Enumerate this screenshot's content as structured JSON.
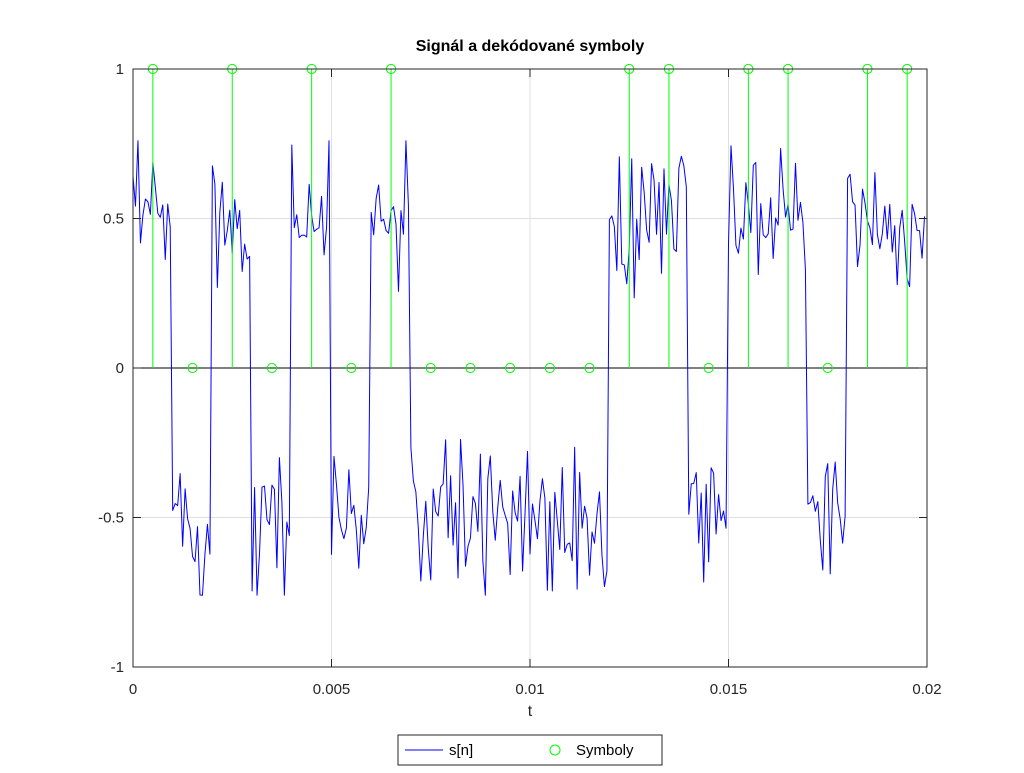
{
  "chart_data": {
    "type": "line",
    "title": "Signál a dekódované symboly",
    "xlabel": "t",
    "ylabel": "",
    "xlim": [
      0,
      0.02
    ],
    "ylim": [
      -1,
      1
    ],
    "grid": true,
    "legend_placement": "bottom-outside",
    "x_ticks": [
      0,
      0.005,
      0.01,
      0.015,
      0.02
    ],
    "x_tick_labels": [
      "0",
      "0.005",
      "0.01",
      "0.015",
      "0.02"
    ],
    "y_ticks": [
      -1,
      -0.5,
      0,
      0.5,
      1
    ],
    "y_tick_labels": [
      "-1",
      "-0.5",
      "0",
      "0.5",
      "1"
    ],
    "series": [
      {
        "name": "s[n]",
        "style": "line",
        "color": "#0000ff",
        "bits": [
          1,
          0,
          1,
          0,
          1,
          0,
          1,
          0,
          0,
          0,
          0,
          0,
          1,
          1,
          0,
          1,
          1,
          0,
          1,
          1
        ],
        "levels": [
          0.5,
          -0.5
        ],
        "samples_per_symbol": 16,
        "t_step": 6.25e-05
      },
      {
        "name": "Symboly",
        "style": "stem",
        "marker": "circle",
        "color": "#00ff00",
        "x": [
          0.0005,
          0.0015,
          0.0025,
          0.0035,
          0.0045,
          0.0055,
          0.0065,
          0.0075,
          0.0085,
          0.0095,
          0.0105,
          0.0115,
          0.0125,
          0.0135,
          0.0145,
          0.0155,
          0.0165,
          0.0175,
          0.0185,
          0.0195
        ],
        "y": [
          1,
          0,
          1,
          0,
          1,
          0,
          1,
          0,
          0,
          0,
          0,
          0,
          1,
          1,
          0,
          1,
          1,
          0,
          1,
          1
        ]
      }
    ]
  },
  "colors": {
    "axes": "#262626",
    "grid": "#dfdfdf",
    "zero_line": "#000000",
    "signal": "#0000ff",
    "symbols": "#00ff00"
  }
}
